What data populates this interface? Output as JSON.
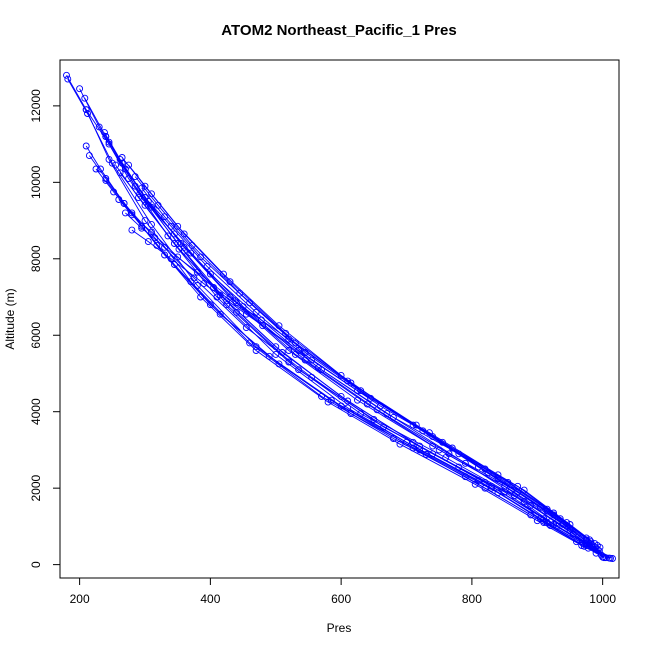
{
  "chart_data": {
    "type": "line",
    "title": "ATOM2 Northeast_Pacific_1 Pres",
    "xlabel": "Pres",
    "ylabel": "Altitude (m)",
    "xlim": [
      170,
      1025
    ],
    "ylim": [
      -350,
      13200
    ],
    "x_ticks": [
      200,
      400,
      600,
      800,
      1000
    ],
    "y_ticks": [
      0,
      2000,
      4000,
      6000,
      8000,
      10000,
      12000
    ],
    "series_color": "#0000ff",
    "grid": false,
    "series": [
      {
        "x": [
          180,
          210,
          245,
          300,
          370,
          460,
          570,
          680,
          790,
          890,
          960,
          1000
        ],
        "y": [
          12800,
          11900,
          10600,
          9000,
          7400,
          5800,
          4400,
          3300,
          2300,
          1300,
          600,
          200
        ]
      },
      {
        "x": [
          182,
          212,
          250,
          310,
          380,
          470,
          585,
          700,
          810,
          905,
          970,
          1005
        ],
        "y": [
          12700,
          11800,
          10500,
          8900,
          7300,
          5700,
          4300,
          3200,
          2200,
          1200,
          550,
          180
        ]
      },
      {
        "x": [
          200,
          230,
          275,
          335,
          410,
          500,
          610,
          720,
          830,
          915,
          975,
          1010
        ],
        "y": [
          12450,
          11450,
          10100,
          8600,
          7000,
          5500,
          4100,
          3000,
          2000,
          1100,
          500,
          170
        ]
      },
      {
        "x": [
          208,
          240,
          285,
          350,
          425,
          520,
          630,
          740,
          850,
          925,
          980,
          1012
        ],
        "y": [
          12200,
          11200,
          9900,
          8400,
          6800,
          5300,
          3950,
          2900,
          1900,
          1050,
          480,
          165
        ]
      },
      {
        "x": [
          210,
          245,
          292,
          360,
          440,
          535,
          650,
          760,
          865,
          930,
          985,
          1015
        ],
        "y": [
          11900,
          11000,
          9700,
          8200,
          6600,
          5100,
          3800,
          2800,
          1800,
          1000,
          460,
          160
        ]
      },
      {
        "x": [
          238,
          262,
          300,
          355,
          430,
          520,
          625,
          740,
          850,
          930,
          990
        ],
        "y": [
          11300,
          10600,
          9600,
          8400,
          7000,
          5600,
          4300,
          3100,
          2050,
          1100,
          400
        ]
      },
      {
        "x": [
          240,
          265,
          305,
          360,
          438,
          530,
          640,
          750,
          860,
          940,
          993
        ],
        "y": [
          11200,
          10500,
          9500,
          8300,
          6900,
          5500,
          4200,
          3000,
          1950,
          1050,
          380
        ]
      },
      {
        "x": [
          245,
          270,
          310,
          370,
          450,
          545,
          655,
          765,
          870,
          945,
          995
        ],
        "y": [
          11050,
          10350,
          9350,
          8150,
          6750,
          5350,
          4050,
          2900,
          1900,
          1000,
          360
        ]
      },
      {
        "x": [
          210,
          232,
          268,
          318,
          385,
          470,
          580,
          690,
          805,
          900,
          968
        ],
        "y": [
          10950,
          10350,
          9450,
          8350,
          7000,
          5600,
          4250,
          3150,
          2100,
          1150,
          500
        ]
      },
      {
        "x": [
          215,
          240,
          280,
          330,
          400,
          490,
          600,
          710,
          820,
          910,
          972
        ],
        "y": [
          10700,
          10100,
          9200,
          8100,
          6800,
          5450,
          4150,
          3050,
          2000,
          1100,
          480
        ]
      },
      {
        "x": [
          225,
          252,
          295,
          345,
          415,
          505,
          615,
          730,
          840,
          920,
          978
        ],
        "y": [
          10350,
          9750,
          8850,
          7850,
          6550,
          5250,
          3950,
          2880,
          1880,
          1020,
          430
        ]
      },
      {
        "x": [
          240,
          268,
          315,
          375,
          455,
          555,
          665,
          780,
          880,
          950,
          990
        ],
        "y": [
          10050,
          9450,
          8550,
          7500,
          6200,
          4900,
          3600,
          2550,
          1650,
          900,
          300
        ]
      },
      {
        "x": [
          260,
          280,
          310,
          350,
          405,
          480,
          570,
          680,
          790,
          890,
          955,
          998
        ],
        "y": [
          9550,
          9150,
          8700,
          8050,
          7250,
          6250,
          5100,
          3850,
          2650,
          1550,
          800,
          250
        ]
      },
      {
        "x": [
          270,
          295,
          330,
          380,
          440,
          520,
          610,
          715,
          820,
          915,
          975,
          1000
        ],
        "y": [
          9200,
          8800,
          8300,
          7650,
          6850,
          5900,
          4800,
          3650,
          2500,
          1450,
          700,
          200
        ]
      },
      {
        "x": [
          280,
          305,
          340,
          390,
          455,
          535,
          625,
          735,
          840,
          925,
          980,
          1002
        ],
        "y": [
          8750,
          8450,
          8000,
          7350,
          6550,
          5600,
          4550,
          3450,
          2350,
          1350,
          650,
          180
        ]
      },
      {
        "x": [
          265,
          300,
          350,
          420,
          505,
          600,
          710,
          810,
          905,
          968
        ],
        "y": [
          10650,
          9900,
          8850,
          7600,
          6250,
          4950,
          3650,
          2550,
          1500,
          700
        ]
      },
      {
        "x": [
          275,
          310,
          360,
          430,
          515,
          615,
          725,
          825,
          915,
          975
        ],
        "y": [
          10450,
          9700,
          8650,
          7400,
          6050,
          4750,
          3500,
          2400,
          1400,
          650
        ]
      },
      {
        "x": [
          285,
          320,
          372,
          445,
          530,
          630,
          740,
          840,
          925,
          982
        ],
        "y": [
          10150,
          9400,
          8350,
          7100,
          5800,
          4550,
          3350,
          2250,
          1300,
          600
        ]
      },
      {
        "x": [
          295,
          330,
          385,
          460,
          545,
          645,
          755,
          855,
          935,
          988
        ],
        "y": [
          9850,
          9100,
          8050,
          6850,
          5550,
          4350,
          3200,
          2150,
          1200,
          550
        ]
      },
      {
        "x": [
          300,
          340,
          395,
          470,
          555,
          660,
          770,
          870,
          945,
          992
        ],
        "y": [
          9600,
          8850,
          7800,
          6600,
          5350,
          4150,
          3050,
          2050,
          1100,
          500
        ]
      },
      {
        "x": [
          305,
          345,
          400,
          478,
          565,
          670,
          780,
          880,
          950,
          996
        ],
        "y": [
          9400,
          8650,
          7600,
          6400,
          5150,
          3950,
          2900,
          1950,
          1050,
          450
        ]
      },
      {
        "x": [
          255,
          290,
          345,
          415,
          500,
          600,
          710,
          820,
          910,
          975
        ],
        "y": [
          10450,
          9600,
          8400,
          7050,
          5700,
          4400,
          3200,
          2150,
          1200,
          550
        ]
      },
      {
        "x": [
          262,
          300,
          352,
          425,
          510,
          610,
          720,
          830,
          920,
          980
        ],
        "y": [
          10250,
          9400,
          8250,
          6900,
          5550,
          4280,
          3100,
          2050,
          1120,
          500
        ]
      }
    ]
  }
}
